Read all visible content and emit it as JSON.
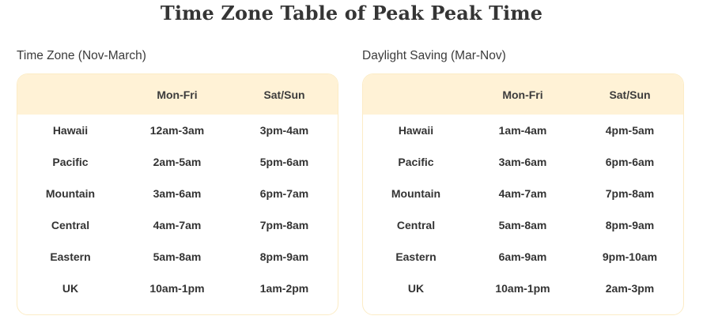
{
  "title": "Time Zone Table of Peak Peak Time",
  "tables": [
    {
      "heading": "Time Zone (Nov-March)",
      "columns": [
        "",
        "Mon-Fri",
        "Sat/Sun"
      ],
      "rows": [
        [
          "Hawaii",
          "12am-3am",
          "3pm-4am"
        ],
        [
          "Pacific",
          "2am-5am",
          "5pm-6am"
        ],
        [
          "Mountain",
          "3am-6am",
          "6pm-7am"
        ],
        [
          "Central",
          "4am-7am",
          "7pm-8am"
        ],
        [
          "Eastern",
          "5am-8am",
          "8pm-9am"
        ],
        [
          "UK",
          "10am-1pm",
          "1am-2pm"
        ]
      ]
    },
    {
      "heading": "Daylight Saving (Mar-Nov)",
      "columns": [
        "",
        "Mon-Fri",
        "Sat/Sun"
      ],
      "rows": [
        [
          "Hawaii",
          "1am-4am",
          "4pm-5am"
        ],
        [
          "Pacific",
          "3am-6am",
          "6pm-6am"
        ],
        [
          "Mountain",
          "4am-7am",
          "7pm-8am"
        ],
        [
          "Central",
          "5am-8am",
          "8pm-9am"
        ],
        [
          "Eastern",
          "6am-9am",
          "9pm-10am"
        ],
        [
          "UK",
          "10am-1pm",
          "2am-3pm"
        ]
      ]
    }
  ],
  "colors": {
    "header_bg": "#fff2d6",
    "border": "#fcecc6",
    "text": "#333333"
  }
}
